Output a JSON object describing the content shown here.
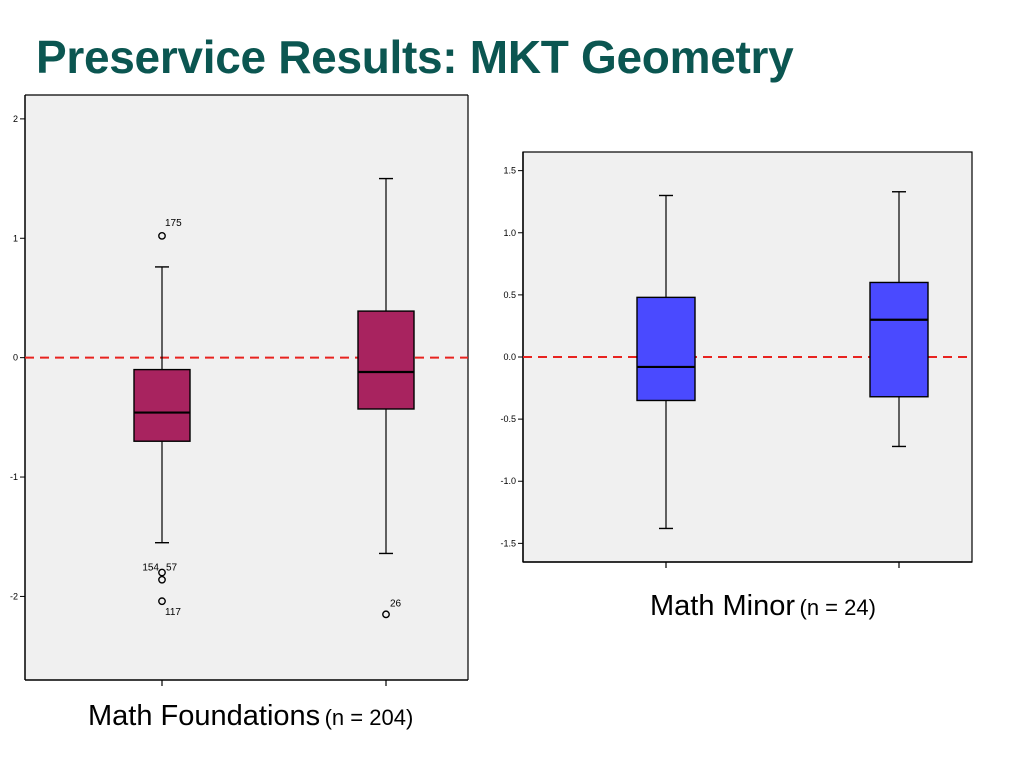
{
  "slide": {
    "title": "Preservice Results: MKT Geometry"
  },
  "captions": {
    "left": {
      "label": "Math Foundations",
      "n": "(n = 204)"
    },
    "right": {
      "label": "Math Minor",
      "n": "(n = 24)"
    }
  },
  "colors": {
    "title": "#0b5651",
    "foundations_box": "#a8235f",
    "minor_box": "#4a4aff",
    "reference_line": "#e8231f",
    "plot_background": "#f0f0f0"
  },
  "chart_data": [
    {
      "type": "box",
      "title": "",
      "xlabel": "",
      "ylabel": "",
      "ylim": [
        -2.7,
        2.2
      ],
      "yticks": [
        2,
        1,
        0,
        -1,
        -2
      ],
      "ytick_labels": [
        "2",
        "1",
        "0",
        "-1",
        "-2"
      ],
      "reference_line": {
        "y": 0,
        "style": "dashed"
      },
      "boxes": [
        {
          "whisker_low": -1.55,
          "q1": -0.7,
          "median": -0.46,
          "q3": -0.1,
          "whisker_high": 0.76,
          "outliers": [
            {
              "value": 1.02,
              "label": "175"
            },
            {
              "value": -1.8,
              "label": "154"
            },
            {
              "value": -1.86,
              "label": "57"
            },
            {
              "value": -2.04,
              "label": "117"
            }
          ]
        },
        {
          "whisker_low": -1.64,
          "q1": -0.43,
          "median": -0.12,
          "q3": 0.39,
          "whisker_high": 1.5,
          "outliers": [
            {
              "value": -2.15,
              "label": "26"
            }
          ]
        }
      ]
    },
    {
      "type": "box",
      "title": "",
      "xlabel": "",
      "ylabel": "",
      "ylim": [
        -1.65,
        1.65
      ],
      "yticks": [
        1.5,
        1.0,
        0.5,
        0.0,
        -0.5,
        -1.0,
        -1.5
      ],
      "ytick_labels": [
        "1.5",
        "1.0",
        "0.5",
        "0.0",
        "-0.5",
        "-1.0",
        "-1.5"
      ],
      "reference_line": {
        "y": 0,
        "style": "dashed"
      },
      "boxes": [
        {
          "whisker_low": -1.38,
          "q1": -0.35,
          "median": -0.08,
          "q3": 0.48,
          "whisker_high": 1.3,
          "outliers": []
        },
        {
          "whisker_low": -0.72,
          "q1": -0.32,
          "median": 0.3,
          "q3": 0.6,
          "whisker_high": 1.33,
          "outliers": []
        }
      ]
    }
  ]
}
